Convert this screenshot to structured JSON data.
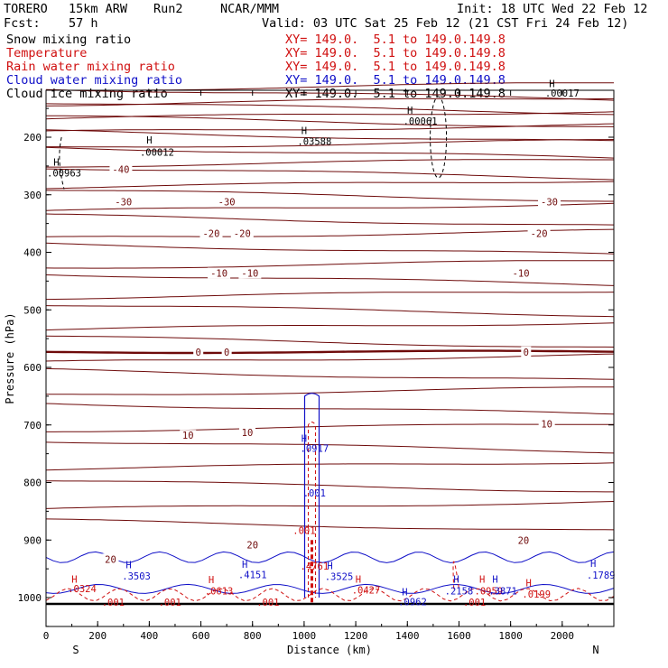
{
  "header": {
    "model": "TORERO",
    "resolution": "15km ARW",
    "run": "Run2",
    "org": "NCAR/MMM",
    "init": "Init: 18 UTC Wed 22 Feb 12",
    "fcst_label": "Fcst:",
    "fcst_value": "57 h",
    "valid": "Valid: 03 UTC Sat 25 Feb 12 (21 CST Fri 24 Feb 12)"
  },
  "fields": [
    {
      "name": "Snow mixing ratio",
      "xy": "XY= 149.0.  5.1 to 149.0.149.8",
      "color": "#000000"
    },
    {
      "name": "Temperature",
      "xy": "XY= 149.0.  5.1 to 149.0.149.8",
      "color": "#d01010"
    },
    {
      "name": "Rain water mixing ratio",
      "xy": "XY= 149.0.  5.1 to 149.0.149.8",
      "color": "#d01010"
    },
    {
      "name": "Cloud water mixing ratio",
      "xy": "XY= 149.0.  5.1 to 149.0.149.8",
      "color": "#1010c8"
    },
    {
      "name": "Cloud ice mixing ratio",
      "xy": "XY= 149.0.  5.1 to 149.0.149.8",
      "color": "#000000"
    }
  ],
  "colors": {
    "temperature": "#6e0a0a",
    "rain": "#d01010",
    "cloud_water": "#1010c8",
    "snow": "#000000",
    "ground": "#000000"
  },
  "chart_data": {
    "type": "cross-section",
    "xlabel": "Distance (km)",
    "ylabel": "Pressure (hPa)",
    "xlim": [
      0,
      2200
    ],
    "ylim": [
      1050,
      100
    ],
    "x_ticks": [
      0,
      200,
      400,
      600,
      800,
      1000,
      1200,
      1400,
      1600,
      1800,
      2000
    ],
    "y_ticks": [
      200,
      300,
      400,
      500,
      600,
      700,
      800,
      900,
      1000
    ],
    "left_end": "S",
    "right_end": "N",
    "isotherms": [
      {
        "value": -40,
        "pressure": 270
      },
      {
        "value": -30,
        "pressure": 312
      },
      {
        "value": -20,
        "pressure": 367
      },
      {
        "value": -10,
        "pressure": 436
      },
      {
        "value": 0,
        "pressure": 573,
        "bold": true
      },
      {
        "value": 10,
        "pressure": 707
      },
      {
        "value": 20,
        "pressure": 909
      }
    ],
    "temperature_labels": [
      {
        "text": "-40",
        "x": 290,
        "p": 256
      },
      {
        "text": "-30",
        "x": 300,
        "p": 312
      },
      {
        "text": "-30",
        "x": 700,
        "p": 312
      },
      {
        "text": "-30",
        "x": 1950,
        "p": 312
      },
      {
        "text": "-20",
        "x": 640,
        "p": 367
      },
      {
        "text": "-20",
        "x": 760,
        "p": 367
      },
      {
        "text": "-20",
        "x": 1910,
        "p": 367
      },
      {
        "text": "-10",
        "x": 670,
        "p": 436
      },
      {
        "text": "-10",
        "x": 790,
        "p": 436
      },
      {
        "text": "-10",
        "x": 1840,
        "p": 436
      },
      {
        "text": "0",
        "x": 590,
        "p": 573
      },
      {
        "text": "0",
        "x": 700,
        "p": 573
      },
      {
        "text": "0",
        "x": 1860,
        "p": 573
      },
      {
        "text": "10",
        "x": 550,
        "p": 718
      },
      {
        "text": "10",
        "x": 780,
        "p": 713
      },
      {
        "text": "10",
        "x": 1940,
        "p": 698
      },
      {
        "text": "20",
        "x": 800,
        "p": 908
      },
      {
        "text": "20",
        "x": 1850,
        "p": 900
      },
      {
        "text": "20",
        "x": 250,
        "p": 933
      }
    ],
    "maxima_labels": [
      {
        "text": "H",
        "x": 400,
        "p": 205,
        "color": "#000000"
      },
      {
        "text": ".00012",
        "x": 430,
        "p": 226,
        "color": "#000000"
      },
      {
        "text": "H",
        "x": 1000,
        "p": 188,
        "color": "#000000"
      },
      {
        "text": ".03588",
        "x": 1040,
        "p": 207,
        "color": "#000000"
      },
      {
        "text": "H",
        "x": 1410,
        "p": 153,
        "color": "#000000"
      },
      {
        "text": ".00061",
        "x": 1450,
        "p": 172,
        "color": "#000000"
      },
      {
        "text": "H",
        "x": 1960,
        "p": 107,
        "color": "#000000"
      },
      {
        "text": ".00017",
        "x": 2000,
        "p": 123,
        "color": "#000000"
      },
      {
        "text": "H",
        "x": 40,
        "p": 243,
        "color": "#000000"
      },
      {
        "text": ".00963",
        "x": 70,
        "p": 262,
        "color": "#000000"
      },
      {
        "text": "H",
        "x": 1000,
        "p": 723,
        "color": "#1010c8"
      },
      {
        "text": ".0917",
        "x": 1040,
        "p": 740,
        "color": "#1010c8"
      },
      {
        "text": ".001",
        "x": 1040,
        "p": 818,
        "color": "#1010c8"
      },
      {
        "text": ".001",
        "x": 1000,
        "p": 883,
        "color": "#d01010"
      },
      {
        "text": "H",
        "x": 320,
        "p": 943,
        "color": "#1010c8"
      },
      {
        "text": ".3503",
        "x": 350,
        "p": 962,
        "color": "#1010c8"
      },
      {
        "text": "H",
        "x": 110,
        "p": 968,
        "color": "#d01010"
      },
      {
        "text": ".0324",
        "x": 140,
        "p": 984,
        "color": "#d01010"
      },
      {
        "text": "H",
        "x": 640,
        "p": 969,
        "color": "#d01010"
      },
      {
        "text": ".0613",
        "x": 670,
        "p": 988,
        "color": "#d01010"
      },
      {
        "text": "H",
        "x": 770,
        "p": 942,
        "color": "#1010c8"
      },
      {
        "text": ".4151",
        "x": 800,
        "p": 960,
        "color": "#1010c8"
      },
      {
        "text": ".4761",
        "x": 1040,
        "p": 945,
        "color": "#d01010"
      },
      {
        "text": "H",
        "x": 1100,
        "p": 944,
        "color": "#1010c8"
      },
      {
        "text": ".3525",
        "x": 1135,
        "p": 963,
        "color": "#1010c8"
      },
      {
        "text": "H",
        "x": 1210,
        "p": 968,
        "color": "#d01010"
      },
      {
        "text": ".0427",
        "x": 1240,
        "p": 987,
        "color": "#d01010"
      },
      {
        "text": "H",
        "x": 1390,
        "p": 990,
        "color": "#1010c8"
      },
      {
        "text": ".0962",
        "x": 1420,
        "p": 1007,
        "color": "#1010c8"
      },
      {
        "text": "H",
        "x": 1590,
        "p": 968,
        "color": "#1010c8"
      },
      {
        "text": ".2158",
        "x": 1600,
        "p": 988,
        "color": "#1010c8"
      },
      {
        "text": "H",
        "x": 1690,
        "p": 968,
        "color": "#d01010"
      },
      {
        "text": ".0959",
        "x": 1715,
        "p": 988,
        "color": "#d01010"
      },
      {
        "text": "H",
        "x": 1740,
        "p": 968,
        "color": "#1010c8"
      },
      {
        "text": ".3871",
        "x": 1770,
        "p": 988,
        "color": "#1010c8"
      },
      {
        "text": "H",
        "x": 1870,
        "p": 974,
        "color": "#d01010"
      },
      {
        "text": ".0199",
        "x": 1900,
        "p": 994,
        "color": "#d01010"
      },
      {
        "text": "H",
        "x": 2120,
        "p": 940,
        "color": "#1010c8"
      },
      {
        "text": ".1789",
        "x": 2150,
        "p": 961,
        "color": "#1010c8"
      },
      {
        "text": ".001",
        "x": 260,
        "p": 1008,
        "color": "#d01010"
      },
      {
        "text": ".001",
        "x": 480,
        "p": 1008,
        "color": "#d01010"
      },
      {
        "text": ".001",
        "x": 860,
        "p": 1008,
        "color": "#d01010"
      },
      {
        "text": ".001",
        "x": 1660,
        "p": 1008,
        "color": "#d01010"
      }
    ]
  }
}
